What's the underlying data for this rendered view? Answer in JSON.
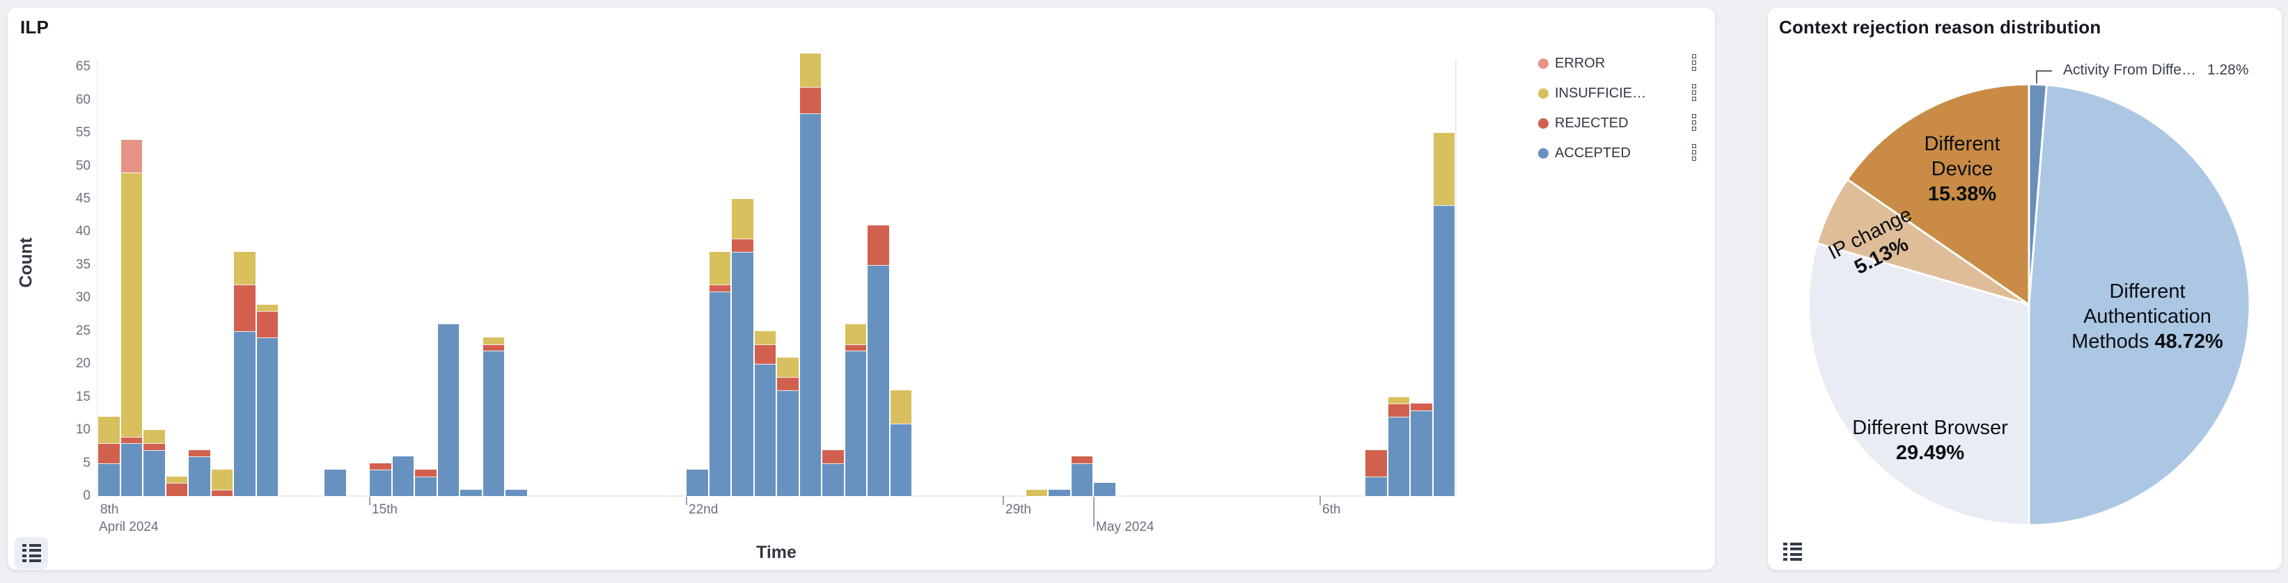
{
  "panels": {
    "ilp": {
      "title": "ILP"
    },
    "pie": {
      "title": "Context rejection reason distribution"
    }
  },
  "chart_data": [
    {
      "type": "bar",
      "title": "ILP",
      "stacked": true,
      "xlabel": "Time",
      "ylabel": "Count",
      "ylim": [
        0,
        65
      ],
      "ytick_step": 5,
      "grid": false,
      "legend_position": "right",
      "x_axis_note": "time axis, 12-hour buckets, Apr 8 2024 - May 8 2024, 60 slots",
      "x_slots": 60,
      "x_ticks": [
        {
          "slot": 0,
          "label": "8th",
          "sublabel": "April 2024",
          "tick": "none"
        },
        {
          "slot": 12,
          "label": "15th",
          "tick": "short"
        },
        {
          "slot": 26,
          "label": "22nd",
          "tick": "short"
        },
        {
          "slot": 40,
          "label": "29th",
          "tick": "short"
        },
        {
          "slot": 44,
          "label": "May 2024",
          "tick": "long",
          "row": 2
        },
        {
          "slot": 54,
          "label": "6th",
          "tick": "short"
        }
      ],
      "stack_order_bottom_to_top": [
        "ACCEPTED",
        "REJECTED",
        "INSUFFICIENT",
        "ERROR"
      ],
      "legend": [
        {
          "label": "ERROR",
          "key": "error",
          "color": "#e59486"
        },
        {
          "label": "INSUFFICIE…",
          "key": "insufficient",
          "color": "#d8c05e"
        },
        {
          "label": "REJECTED",
          "key": "rejected",
          "color": "#d2604e"
        },
        {
          "label": "ACCEPTED",
          "key": "accepted",
          "color": "#6792c0"
        }
      ],
      "bars": [
        {
          "slot": 0,
          "accepted": 5,
          "rejected": 3,
          "insufficient": 4,
          "error": 0
        },
        {
          "slot": 1,
          "accepted": 8,
          "rejected": 1,
          "insufficient": 40,
          "error": 5
        },
        {
          "slot": 2,
          "accepted": 7,
          "rejected": 1,
          "insufficient": 2,
          "error": 0
        },
        {
          "slot": 3,
          "accepted": 0,
          "rejected": 2,
          "insufficient": 1,
          "error": 0
        },
        {
          "slot": 4,
          "accepted": 6,
          "rejected": 1,
          "insufficient": 0,
          "error": 0
        },
        {
          "slot": 5,
          "accepted": 0,
          "rejected": 1,
          "insufficient": 3,
          "error": 0
        },
        {
          "slot": 6,
          "accepted": 25,
          "rejected": 7,
          "insufficient": 5,
          "error": 0
        },
        {
          "slot": 7,
          "accepted": 24,
          "rejected": 4,
          "insufficient": 1,
          "error": 0
        },
        {
          "slot": 10,
          "accepted": 4,
          "rejected": 0,
          "insufficient": 0,
          "error": 0
        },
        {
          "slot": 12,
          "accepted": 4,
          "rejected": 1,
          "insufficient": 0,
          "error": 0
        },
        {
          "slot": 13,
          "accepted": 6,
          "rejected": 0,
          "insufficient": 0,
          "error": 0
        },
        {
          "slot": 14,
          "accepted": 3,
          "rejected": 1,
          "insufficient": 0,
          "error": 0
        },
        {
          "slot": 15,
          "accepted": 26,
          "rejected": 0,
          "insufficient": 0,
          "error": 0
        },
        {
          "slot": 16,
          "accepted": 1,
          "rejected": 0,
          "insufficient": 0,
          "error": 0
        },
        {
          "slot": 17,
          "accepted": 22,
          "rejected": 1,
          "insufficient": 1,
          "error": 0
        },
        {
          "slot": 18,
          "accepted": 1,
          "rejected": 0,
          "insufficient": 0,
          "error": 0
        },
        {
          "slot": 26,
          "accepted": 4,
          "rejected": 0,
          "insufficient": 0,
          "error": 0
        },
        {
          "slot": 27,
          "accepted": 31,
          "rejected": 1,
          "insufficient": 5,
          "error": 0
        },
        {
          "slot": 28,
          "accepted": 37,
          "rejected": 2,
          "insufficient": 6,
          "error": 0
        },
        {
          "slot": 29,
          "accepted": 20,
          "rejected": 3,
          "insufficient": 2,
          "error": 0
        },
        {
          "slot": 30,
          "accepted": 16,
          "rejected": 2,
          "insufficient": 3,
          "error": 0
        },
        {
          "slot": 31,
          "accepted": 58,
          "rejected": 4,
          "insufficient": 5,
          "error": 0
        },
        {
          "slot": 32,
          "accepted": 5,
          "rejected": 2,
          "insufficient": 0,
          "error": 0
        },
        {
          "slot": 33,
          "accepted": 22,
          "rejected": 1,
          "insufficient": 3,
          "error": 0
        },
        {
          "slot": 34,
          "accepted": 35,
          "rejected": 6,
          "insufficient": 0,
          "error": 0
        },
        {
          "slot": 35,
          "accepted": 11,
          "rejected": 0,
          "insufficient": 5,
          "error": 0
        },
        {
          "slot": 41,
          "accepted": 0,
          "rejected": 0,
          "insufficient": 1,
          "error": 0
        },
        {
          "slot": 42,
          "accepted": 1,
          "rejected": 0,
          "insufficient": 0,
          "error": 0
        },
        {
          "slot": 43,
          "accepted": 5,
          "rejected": 1,
          "insufficient": 0,
          "error": 0
        },
        {
          "slot": 44,
          "accepted": 2,
          "rejected": 0,
          "insufficient": 0,
          "error": 0
        },
        {
          "slot": 56,
          "accepted": 3,
          "rejected": 4,
          "insufficient": 0,
          "error": 0
        },
        {
          "slot": 57,
          "accepted": 12,
          "rejected": 2,
          "insufficient": 1,
          "error": 0
        },
        {
          "slot": 58,
          "accepted": 13,
          "rejected": 1,
          "insufficient": 0,
          "error": 0
        },
        {
          "slot": 59,
          "accepted": 44,
          "rejected": 0,
          "insufficient": 11,
          "error": 0
        }
      ]
    },
    {
      "type": "pie",
      "title": "Context rejection reason distribution",
      "start_angle_deg": 0,
      "direction": "clockwise-from-top",
      "slices": [
        {
          "name": "Activity From Diffe…",
          "pct": 1.28,
          "pct_label": "1.28%",
          "color": "#6a8fba",
          "annotated": true
        },
        {
          "name": "Different Authentication Methods",
          "pct": 48.72,
          "pct_label": "48.72%",
          "color": "#abc7e3",
          "lines": [
            "Different",
            "Authentication",
            "Methods"
          ],
          "pct_inline": true
        },
        {
          "name": "Different Browser",
          "pct": 29.49,
          "pct_label": "29.49%",
          "color": "#e9edf3",
          "lines": [
            "Different Browser"
          ]
        },
        {
          "name": "IP change",
          "pct": 5.13,
          "pct_label": "5.13%",
          "color": "#dfbd98",
          "lines": [
            "IP change"
          ]
        },
        {
          "name": "Different Device",
          "pct": 15.38,
          "pct_label": "15.38%",
          "color": "#c98b45",
          "lines": [
            "Different",
            "Device"
          ]
        }
      ]
    }
  ],
  "icons": {
    "legend_toggle": "list-icon",
    "legend_item_menu": "vertical-squares-menu-icon"
  }
}
